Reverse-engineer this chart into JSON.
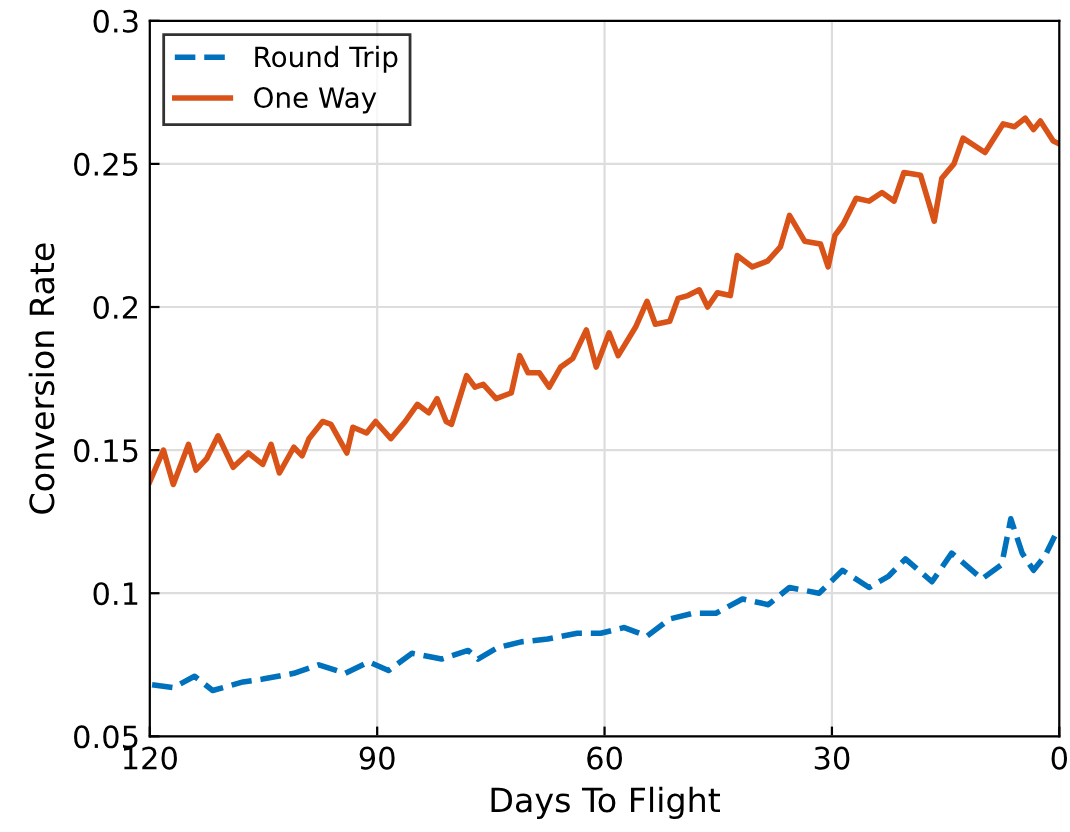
{
  "chart_data": {
    "type": "line",
    "xlabel": "Days To Flight",
    "ylabel": "Conversion Rate",
    "xlim": [
      120,
      0
    ],
    "xticks": [
      120,
      90,
      60,
      30,
      0
    ],
    "ylim": [
      0.05,
      0.3
    ],
    "yticks": [
      0.05,
      0.1,
      0.15,
      0.2,
      0.25,
      0.3
    ],
    "grid": true,
    "legend": "top left",
    "marker": "none",
    "series": [
      {
        "name": "Round Trip",
        "color": "#0072bd",
        "line_style": "dashed",
        "x": [
          119.7,
          116.9,
          114.1,
          111.7,
          107.7,
          105.1,
          101,
          97.7,
          94.2,
          91.1,
          88.5,
          85.4,
          81.5,
          78,
          76.7,
          74.1,
          71,
          67.5,
          63.6,
          60.5,
          57.4,
          54.4,
          51.4,
          48.3,
          45.3,
          41.8,
          38.4,
          35.6,
          31.7,
          28.6,
          25.1,
          22.5,
          20.3,
          16.8,
          14.2,
          12.4,
          10.2,
          7.6,
          6.4,
          4.9,
          3.4,
          1.9,
          0.6
        ],
        "values": [
          0.068,
          0.067,
          0.071,
          0.066,
          0.069,
          0.07,
          0.072,
          0.075,
          0.072,
          0.076,
          0.073,
          0.079,
          0.077,
          0.08,
          0.077,
          0.081,
          0.083,
          0.084,
          0.086,
          0.086,
          0.088,
          0.085,
          0.091,
          0.093,
          0.093,
          0.098,
          0.096,
          0.102,
          0.1,
          0.108,
          0.102,
          0.106,
          0.112,
          0.104,
          0.114,
          0.11,
          0.105,
          0.11,
          0.126,
          0.114,
          0.108,
          0.113,
          0.12
        ]
      },
      {
        "name": "One Way",
        "color": "#d95319",
        "line_style": "solid",
        "x": [
          120,
          118.2,
          116.9,
          114.9,
          113.9,
          112.5,
          111,
          109,
          107,
          105.1,
          104,
          102.9,
          101,
          99.9,
          99,
          97.2,
          96.1,
          94,
          93.2,
          91.4,
          90.2,
          88.2,
          86.3,
          84.7,
          83.2,
          82.1,
          80.9,
          80.2,
          78.2,
          77.1,
          76,
          74.3,
          72.3,
          71.2,
          70.1,
          68.6,
          67.3,
          65.8,
          64.2,
          62.4,
          61.1,
          59.4,
          58.2,
          55.9,
          54.4,
          53.3,
          51.4,
          50.3,
          49,
          47.5,
          46.4,
          45.1,
          43.4,
          42.5,
          40.5,
          38.5,
          36.8,
          35.6,
          33.6,
          31.5,
          30.5,
          29.6,
          28.5,
          26.8,
          25.1,
          23.4,
          21.8,
          20.5,
          18.3,
          16.5,
          15.5,
          13.9,
          12.7,
          9.8,
          7.4,
          5.9,
          4.5,
          3.4,
          2.5,
          0.8,
          0
        ],
        "values": [
          0.139,
          0.15,
          0.138,
          0.152,
          0.143,
          0.147,
          0.155,
          0.144,
          0.149,
          0.145,
          0.152,
          0.142,
          0.151,
          0.148,
          0.154,
          0.16,
          0.159,
          0.149,
          0.158,
          0.156,
          0.16,
          0.154,
          0.16,
          0.166,
          0.163,
          0.168,
          0.16,
          0.159,
          0.176,
          0.172,
          0.173,
          0.168,
          0.17,
          0.183,
          0.177,
          0.177,
          0.172,
          0.179,
          0.182,
          0.192,
          0.179,
          0.191,
          0.183,
          0.193,
          0.202,
          0.194,
          0.195,
          0.203,
          0.204,
          0.206,
          0.2,
          0.205,
          0.204,
          0.218,
          0.214,
          0.216,
          0.221,
          0.232,
          0.223,
          0.222,
          0.214,
          0.225,
          0.229,
          0.238,
          0.237,
          0.24,
          0.237,
          0.247,
          0.246,
          0.23,
          0.245,
          0.25,
          0.259,
          0.254,
          0.264,
          0.263,
          0.266,
          0.262,
          0.265,
          0.258,
          0.257
        ]
      }
    ]
  }
}
